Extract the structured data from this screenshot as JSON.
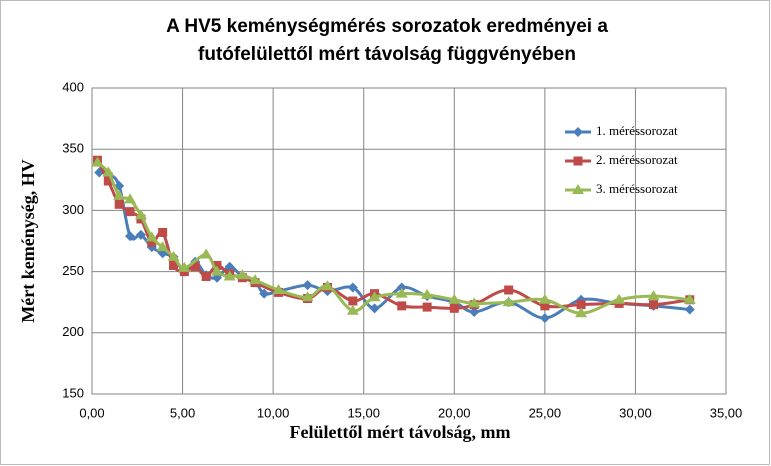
{
  "chart_data": {
    "type": "line",
    "title": [
      "A HV5 keménységmérés sorozatok eredményei a",
      "futófelülettől mért távolság függvényében"
    ],
    "x_label": "Felülettől mért távolság, mm",
    "y_label": "Mért keménység, HV",
    "xlim": [
      0,
      35
    ],
    "ylim": [
      150,
      400
    ],
    "xticks": [
      {
        "value": 0,
        "label": "0,00"
      },
      {
        "value": 5,
        "label": "5,00"
      },
      {
        "value": 10,
        "label": "10,00"
      },
      {
        "value": 15,
        "label": "15,00"
      },
      {
        "value": 20,
        "label": "20,00"
      },
      {
        "value": 25,
        "label": "25,00"
      },
      {
        "value": 30,
        "label": "30,00"
      },
      {
        "value": 35,
        "label": "35,00"
      }
    ],
    "yticks": [
      150,
      200,
      250,
      300,
      350,
      400
    ],
    "grid": true,
    "legend": "upper right",
    "series": [
      {
        "name": "1. méréssorozat",
        "color": "#4a7ebb",
        "marker": "diamond",
        "x": [
          0.4,
          0.9,
          1.5,
          2.1,
          2.7,
          3.3,
          3.9,
          4.5,
          5.1,
          5.7,
          6.3,
          6.9,
          7.6,
          8.3,
          9.0,
          9.5,
          10.3,
          11.9,
          13.0,
          14.4,
          15.6,
          17.1,
          18.5,
          20.0,
          21.1,
          23.0,
          25.0,
          27.0,
          29.1,
          31.0,
          33.0
        ],
        "values": [
          331,
          330,
          320,
          279,
          280,
          270,
          265,
          262,
          250,
          258,
          247,
          245,
          254,
          246,
          242,
          232,
          234,
          239,
          234,
          237,
          220,
          237,
          230,
          225,
          217,
          225,
          212,
          227,
          224,
          222,
          219
        ]
      },
      {
        "name": "2. méréssorozat",
        "color": "#be4b48",
        "marker": "square",
        "x": [
          0.3,
          0.9,
          1.5,
          2.1,
          2.7,
          3.3,
          3.9,
          4.5,
          5.1,
          5.7,
          6.3,
          6.9,
          7.6,
          8.3,
          9.0,
          10.3,
          11.9,
          13.0,
          14.4,
          15.6,
          17.1,
          18.5,
          20.0,
          21.1,
          23.0,
          25.0,
          27.0,
          29.1,
          31.0,
          33.0
        ],
        "values": [
          341,
          324,
          305,
          299,
          293,
          274,
          282,
          255,
          250,
          254,
          246,
          255,
          248,
          245,
          241,
          233,
          228,
          237,
          226,
          232,
          222,
          221,
          220,
          223,
          235,
          222,
          223,
          224,
          223,
          227
        ]
      },
      {
        "name": "3. méréssorozat",
        "color": "#98b954",
        "marker": "triangle",
        "x": [
          0.3,
          0.9,
          1.5,
          2.1,
          2.7,
          3.3,
          3.9,
          4.5,
          5.1,
          6.3,
          6.9,
          7.6,
          8.3,
          9.0,
          10.3,
          11.9,
          13.0,
          14.4,
          15.6,
          17.1,
          18.5,
          20.0,
          21.1,
          23.0,
          25.0,
          27.0,
          29.1,
          31.0,
          33.0
        ],
        "values": [
          339,
          331,
          312,
          309,
          296,
          278,
          270,
          262,
          253,
          264,
          250,
          246,
          247,
          243,
          235,
          229,
          238,
          218,
          229,
          232,
          231,
          227,
          224,
          225,
          227,
          216,
          227,
          230,
          227
        ]
      }
    ]
  }
}
